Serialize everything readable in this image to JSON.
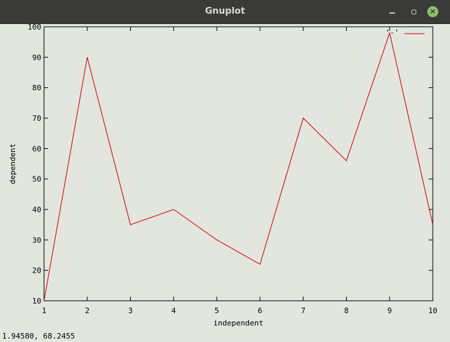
{
  "window": {
    "title": "Gnuplot"
  },
  "status": {
    "coordinates": "1.94580,  68.2455"
  },
  "chart_data": {
    "type": "line",
    "title": "",
    "xlabel": "independent",
    "ylabel": "dependent",
    "xlim": [
      1,
      10
    ],
    "ylim": [
      10,
      100
    ],
    "x_ticks": [
      1,
      2,
      3,
      4,
      5,
      6,
      7,
      8,
      9,
      10
    ],
    "y_ticks": [
      10,
      20,
      30,
      40,
      50,
      60,
      70,
      80,
      90,
      100
    ],
    "legend": {
      "position": "top-right",
      "entry": "'-'"
    },
    "series": [
      {
        "name": "'-'",
        "color": "#cc0000",
        "x": [
          1,
          2,
          3,
          4,
          5,
          6,
          7,
          8,
          9,
          10
        ],
        "y": [
          10,
          90,
          35,
          40,
          30,
          22,
          70,
          56,
          98,
          35
        ]
      }
    ]
  }
}
